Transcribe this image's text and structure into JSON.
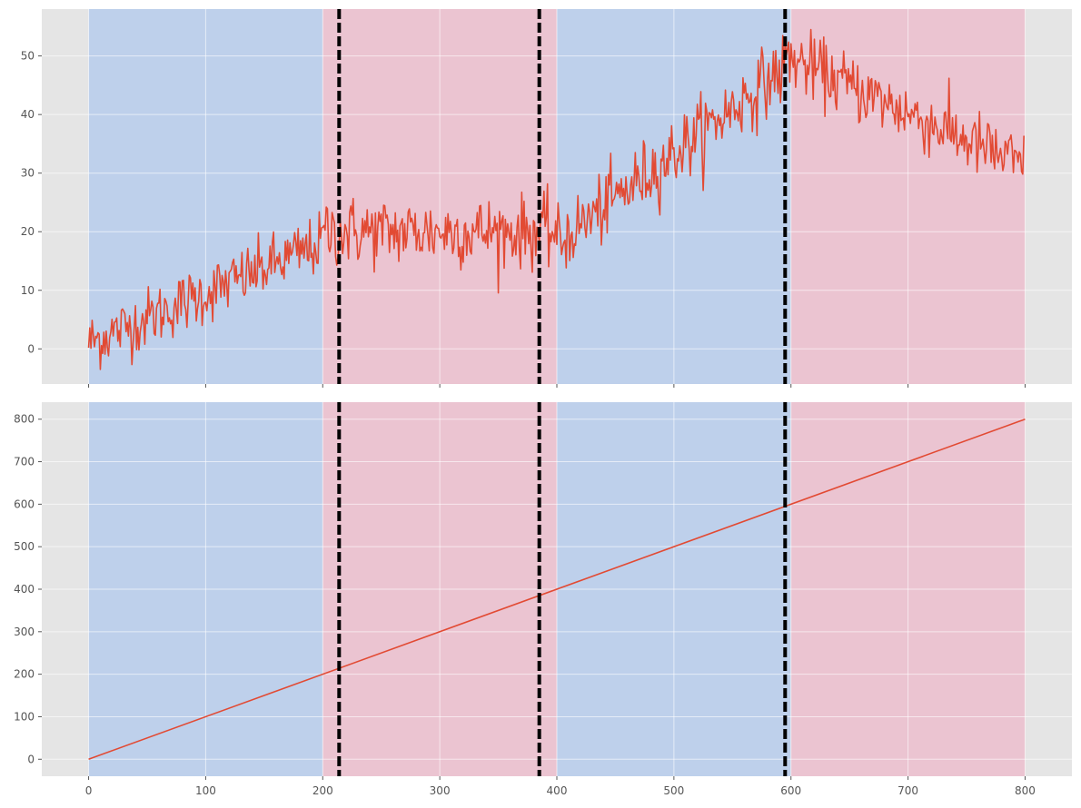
{
  "chart_data": [
    {
      "type": "line",
      "title": "",
      "xlabel": "",
      "ylabel": "",
      "xlim": [
        -40,
        840
      ],
      "ylim": [
        -6,
        58
      ],
      "xticks": [
        0,
        100,
        200,
        300,
        400,
        500,
        600,
        700,
        800
      ],
      "xtick_labels_visible": false,
      "yticks": [
        0,
        10,
        20,
        30,
        40,
        50
      ],
      "grid": true,
      "legend": "none",
      "background": "#E5E5E5",
      "shaded_regions": [
        {
          "start": 0,
          "end": 200,
          "color": "#B0C8EC"
        },
        {
          "start": 200,
          "end": 400,
          "color": "#ECB8CA"
        },
        {
          "start": 400,
          "end": 600,
          "color": "#B0C8EC"
        },
        {
          "start": 600,
          "end": 800,
          "color": "#ECB8CA"
        }
      ],
      "vlines": [
        {
          "x": 214,
          "style": "dashed",
          "color": "#000000"
        },
        {
          "x": 385,
          "style": "dashed",
          "color": "#000000"
        },
        {
          "x": 595,
          "style": "dashed",
          "color": "#000000"
        }
      ],
      "series": [
        {
          "color": "#E24A33",
          "segments": [
            {
              "x0": 0,
              "x1": 200,
              "y0": 1,
              "y1": 18,
              "noise": 2.6
            },
            {
              "x0": 200,
              "x1": 400,
              "y0": 20,
              "y1": 20,
              "noise": 3.0
            },
            {
              "x0": 400,
              "x1": 595,
              "y0": 18,
              "y1": 48,
              "noise": 3.0
            },
            {
              "x0": 595,
              "x1": 800,
              "y0": 50,
              "y1": 31,
              "noise": 2.8
            }
          ]
        }
      ]
    },
    {
      "type": "line",
      "title": "",
      "xlabel": "",
      "ylabel": "",
      "xlim": [
        -40,
        840
      ],
      "ylim": [
        -40,
        840
      ],
      "xticks": [
        0,
        100,
        200,
        300,
        400,
        500,
        600,
        700,
        800
      ],
      "xtick_labels_visible": true,
      "yticks": [
        0,
        100,
        200,
        300,
        400,
        500,
        600,
        700,
        800
      ],
      "grid": true,
      "legend": "none",
      "background": "#E5E5E5",
      "shaded_regions": [
        {
          "start": 0,
          "end": 200,
          "color": "#B0C8EC"
        },
        {
          "start": 200,
          "end": 400,
          "color": "#ECB8CA"
        },
        {
          "start": 400,
          "end": 600,
          "color": "#B0C8EC"
        },
        {
          "start": 600,
          "end": 800,
          "color": "#ECB8CA"
        }
      ],
      "vlines": [
        {
          "x": 214,
          "style": "dashed",
          "color": "#000000"
        },
        {
          "x": 385,
          "style": "dashed",
          "color": "#000000"
        },
        {
          "x": 595,
          "style": "dashed",
          "color": "#000000"
        }
      ],
      "series": [
        {
          "color": "#E24A33",
          "x": [
            0,
            800
          ],
          "y": [
            0,
            800
          ]
        }
      ]
    }
  ]
}
